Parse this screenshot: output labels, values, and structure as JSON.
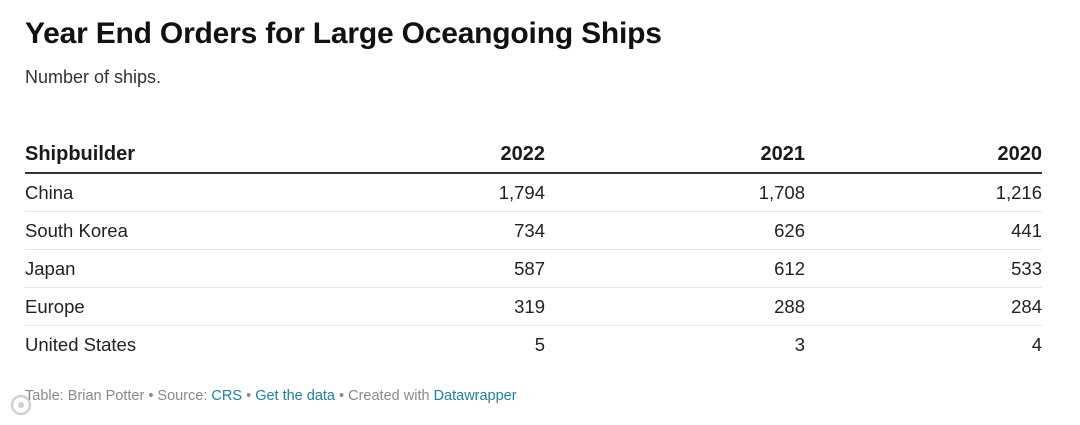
{
  "chart_data": {
    "type": "table",
    "title": "Year End Orders for Large Oceangoing Ships",
    "subtitle": "Number of ships.",
    "columns": [
      "Shipbuilder",
      "2022",
      "2021",
      "2020"
    ],
    "rows": [
      {
        "name": "China",
        "values": [
          "1,794",
          "1,708",
          "1,216"
        ]
      },
      {
        "name": "South Korea",
        "values": [
          "734",
          "626",
          "441"
        ]
      },
      {
        "name": "Japan",
        "values": [
          "587",
          "612",
          "533"
        ]
      },
      {
        "name": "Europe",
        "values": [
          "319",
          "288",
          "284"
        ]
      },
      {
        "name": "United States",
        "values": [
          "5",
          "3",
          "4"
        ]
      }
    ]
  },
  "footer": {
    "prefix": "Table: Brian Potter • Source: ",
    "source_link": "CRS",
    "sep1": " • ",
    "data_link": "Get the data",
    "sep2": " • Created with ",
    "tool_link": "Datawrapper"
  },
  "watermark": {
    "icon": "watermark-logo-icon"
  },
  "colors": {
    "link": "#1d81a2",
    "footer_text": "#8a8a8a",
    "header_rule": "#333333",
    "row_rule": "#e6e6e6"
  }
}
